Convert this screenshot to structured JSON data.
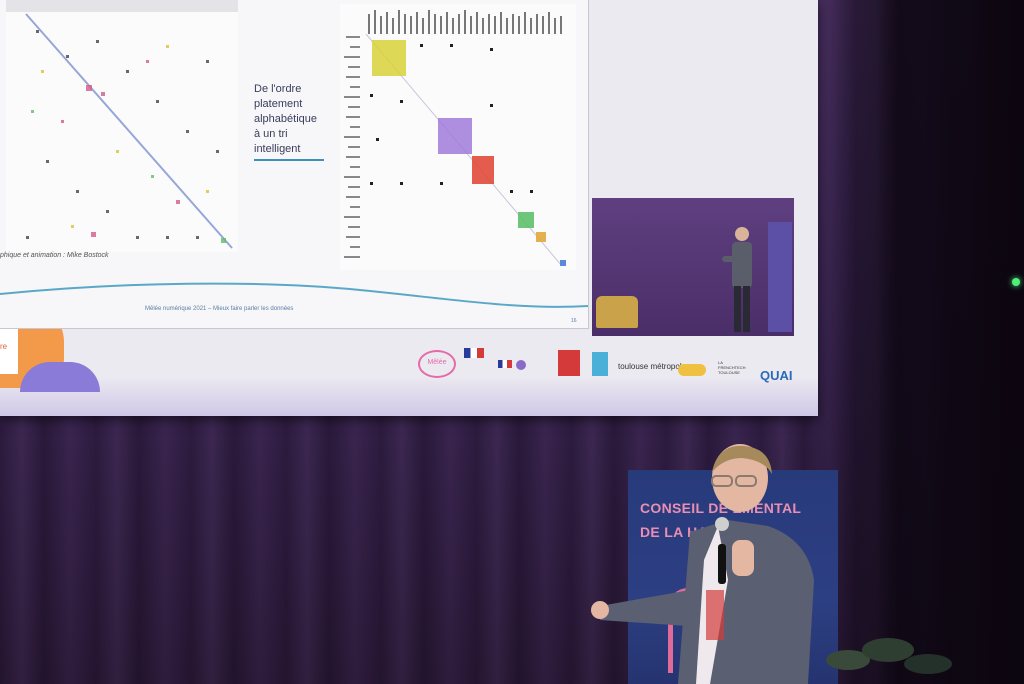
{
  "slide": {
    "caption_lines": [
      "De l'ordre",
      "platement",
      "alphabétique",
      "à un tri",
      "intelligent"
    ],
    "credit": "phique et animation : Mike Bostock",
    "footer": "Mêlée numérique 2021 – Mieux faire parler les données",
    "page_number": "16",
    "side_box_text": "re"
  },
  "logos": {
    "melee": "Mêlée",
    "toulouse": "toulouse métropole",
    "french_tech": "LA FRENCHTECH TOULOUSE",
    "quai": "QUAI"
  },
  "banner": {
    "line1": "CONSEIL DE   EMENTAL",
    "line2": "DE LA HA     ONNE"
  },
  "colors": {
    "curtain": "#3b2454",
    "banner": "#273a7a",
    "banner_text": "#e98fb4",
    "accent_blue": "#3c8fbf"
  }
}
